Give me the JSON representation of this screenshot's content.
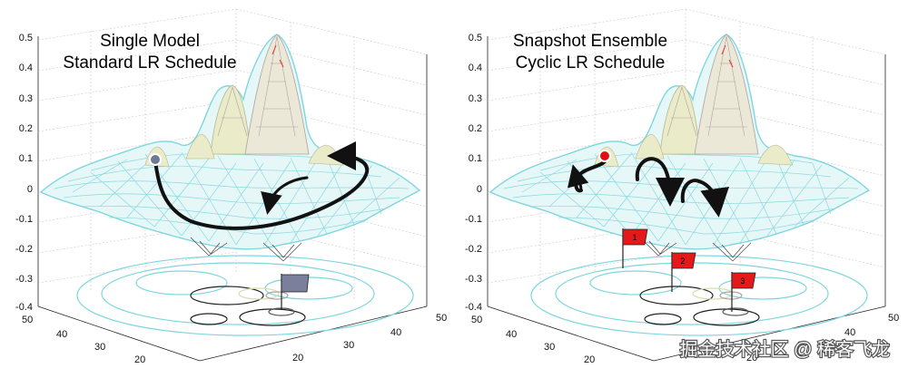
{
  "panels": [
    {
      "title_line1": "Single Model",
      "title_line2": "Standard LR Schedule",
      "z_ticks": [
        "0.5",
        "0.4",
        "0.3",
        "0.2",
        "0.1",
        "0",
        "-0.1",
        "-0.2",
        "-0.3",
        "-0.4"
      ],
      "left_axis_ticks": [
        "50",
        "40",
        "30",
        "20"
      ],
      "right_axis_ticks": [
        "50",
        "40",
        "30",
        "20"
      ],
      "marker_color": "#6f7a92",
      "flag_color": "#7b7f9c",
      "flags": [
        ""
      ]
    },
    {
      "title_line1": "Snapshot Ensemble",
      "title_line2": "Cyclic LR Schedule",
      "z_ticks": [
        "0.5",
        "0.4",
        "0.3",
        "0.2",
        "0.1",
        "0",
        "-0.1",
        "-0.2",
        "-0.3",
        "-0.4"
      ],
      "left_axis_ticks": [
        "50",
        "40",
        "30",
        "20"
      ],
      "right_axis_ticks": [
        "50",
        "40",
        "30",
        "20"
      ],
      "marker_color": "#e01010",
      "flag_color": "#e41a1a",
      "flags": [
        "1",
        "2",
        "3"
      ]
    }
  ],
  "watermark": "掘金技术社区 @ 稀客飞龙",
  "colors": {
    "mesh_low": "#7fd6df",
    "mesh_mid": "#d9dcb0",
    "mesh_high": "#b0a0a0",
    "trajectory": "#111111"
  }
}
